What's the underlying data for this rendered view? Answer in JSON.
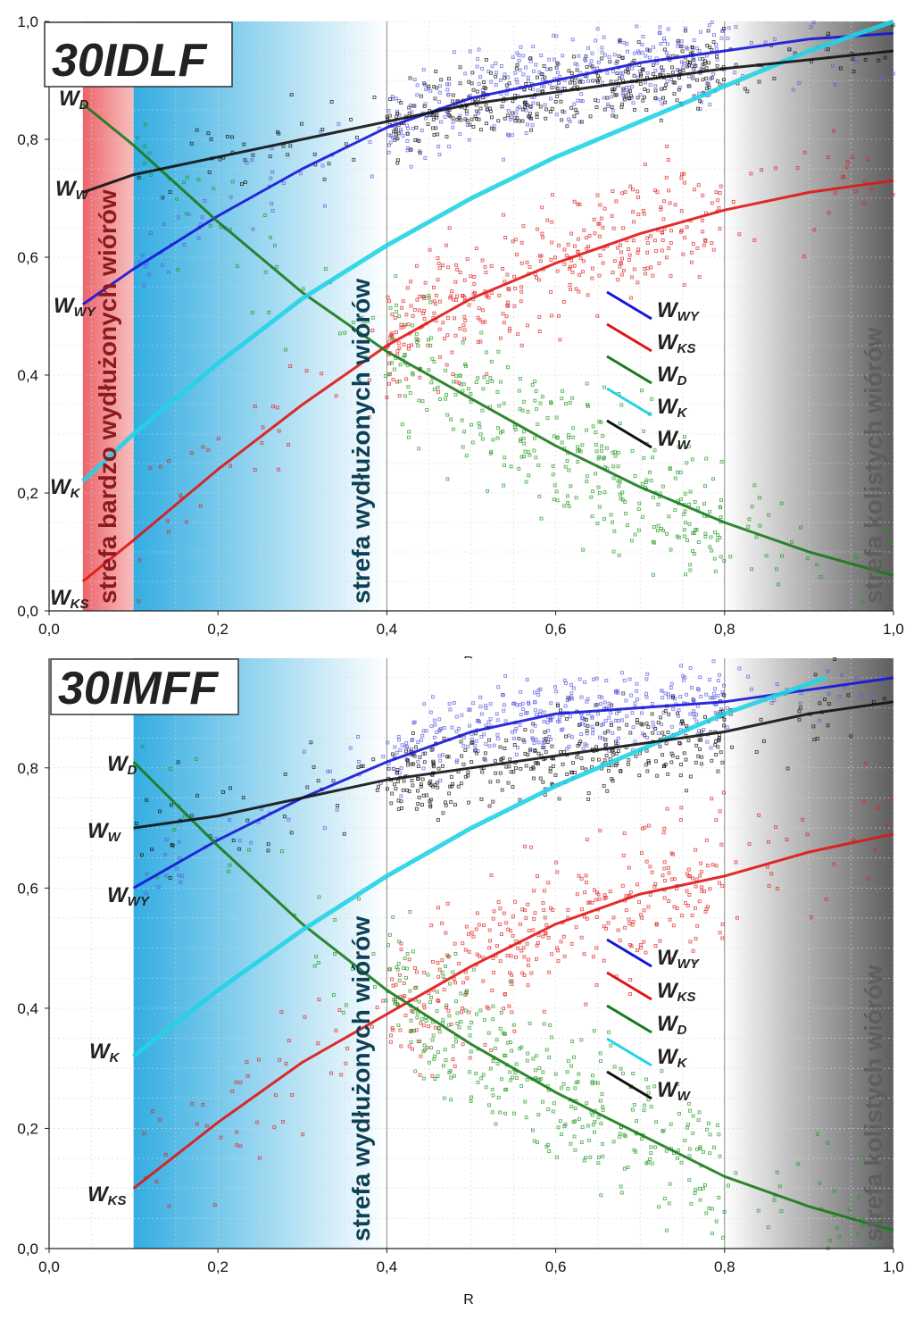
{
  "chart_data": [
    {
      "type": "scatter",
      "title": "30IDLF",
      "xlabel": "R",
      "ylabel": "",
      "xlim": [
        0.0,
        1.0
      ],
      "ylim": [
        0.0,
        1.0
      ],
      "x_ticks": [
        "0,0",
        "0,2",
        "0,4",
        "0,6",
        "0,8",
        "1,0"
      ],
      "y_ticks": [
        "0,0",
        "0,2",
        "0,4",
        "0,6",
        "0,8",
        "1,0"
      ],
      "grid": true,
      "zones": [
        {
          "label": "strefa bardzo wydłużonych wiórów",
          "from": 0.04,
          "to": 0.1,
          "color": "#e8474f",
          "text_color": "#8b1a1e"
        },
        {
          "label": "strefa wydłużonych wiórów",
          "from": 0.1,
          "to": 0.4,
          "color": "#29a9e0",
          "text_color": "#0f3f56"
        },
        {
          "label": "strefa kolistych wiórów",
          "from": 0.8,
          "to": 1.0,
          "color": "#555555",
          "text_color": "#5e5e5e"
        }
      ],
      "series": [
        {
          "name": "W",
          "sub": "WY",
          "color": "#1515d6",
          "marker": "#5a5ae0",
          "x": [
            0.04,
            0.1,
            0.2,
            0.3,
            0.4,
            0.5,
            0.6,
            0.7,
            0.8,
            0.9,
            1.0
          ],
          "y": [
            0.52,
            0.58,
            0.67,
            0.75,
            0.82,
            0.87,
            0.9,
            0.93,
            0.95,
            0.97,
            0.98
          ],
          "scatter_center": [
            0.15,
            0.42,
            0.55,
            0.85,
            0.95
          ],
          "spread": 0.07
        },
        {
          "name": "W",
          "sub": "KS",
          "color": "#e01515",
          "marker": "#e02020",
          "x": [
            0.04,
            0.1,
            0.2,
            0.3,
            0.4,
            0.5,
            0.6,
            0.7,
            0.8,
            0.9,
            1.0
          ],
          "y": [
            0.05,
            0.12,
            0.24,
            0.35,
            0.45,
            0.53,
            0.59,
            0.64,
            0.68,
            0.71,
            0.73
          ],
          "scatter_center": [
            0.35,
            0.45,
            0.55,
            0.62,
            0.75
          ],
          "spread": 0.09
        },
        {
          "name": "W",
          "sub": "D",
          "color": "#1a7a1a",
          "marker": "#1f9a1f",
          "x": [
            0.04,
            0.1,
            0.2,
            0.3,
            0.4,
            0.5,
            0.6,
            0.7,
            0.8,
            0.9,
            1.0
          ],
          "y": [
            0.86,
            0.79,
            0.66,
            0.54,
            0.44,
            0.36,
            0.28,
            0.21,
            0.15,
            0.1,
            0.06
          ],
          "scatter_center": [
            0.2,
            0.4,
            0.6,
            0.8,
            0.95
          ],
          "spread": 0.1
        },
        {
          "name": "W",
          "sub": "K",
          "color": "#22d3e6",
          "marker": "#22d3e6",
          "x": [
            0.04,
            0.1,
            0.2,
            0.3,
            0.4,
            0.5,
            0.6,
            0.7,
            0.8,
            0.9,
            1.0
          ],
          "y": [
            0.22,
            0.3,
            0.42,
            0.53,
            0.62,
            0.7,
            0.77,
            0.83,
            0.89,
            0.95,
            1.0
          ],
          "scatter_center": [],
          "spread": 0.0
        },
        {
          "name": "W",
          "sub": "W",
          "color": "#111111",
          "marker": "#111111",
          "x": [
            0.04,
            0.1,
            0.2,
            0.3,
            0.4,
            0.5,
            0.6,
            0.7,
            0.8,
            0.9,
            1.0
          ],
          "y": [
            0.71,
            0.74,
            0.77,
            0.8,
            0.83,
            0.86,
            0.88,
            0.9,
            0.92,
            0.935,
            0.95
          ],
          "scatter_center": [
            0.3,
            0.42,
            0.55,
            0.8,
            0.95
          ],
          "spread": 0.05
        }
      ],
      "curve_labels": [
        {
          "name": "W",
          "sub": "D"
        },
        {
          "name": "W",
          "sub": "W"
        },
        {
          "name": "W",
          "sub": "WY"
        },
        {
          "name": "W",
          "sub": "K"
        },
        {
          "name": "W",
          "sub": "KS"
        }
      ],
      "legend": [
        {
          "name": "W",
          "sub": "WY",
          "color": "#1515d6"
        },
        {
          "name": "W",
          "sub": "KS",
          "color": "#e01515"
        },
        {
          "name": "W",
          "sub": "D",
          "color": "#1a7a1a"
        },
        {
          "name": "W",
          "sub": "K",
          "color": "#22d3e6"
        },
        {
          "name": "W",
          "sub": "W",
          "color": "#111111"
        }
      ]
    },
    {
      "type": "scatter",
      "title": "30IMFF",
      "xlabel": "R",
      "ylabel": "",
      "xlim": [
        0.0,
        1.0
      ],
      "ylim": [
        0.0,
        1.0
      ],
      "x_ticks": [
        "0,0",
        "0,2",
        "0,4",
        "0,6",
        "0,8",
        "1,0"
      ],
      "y_ticks": [
        "0,0",
        "0,2",
        "0,4",
        "0,6",
        "0,8"
      ],
      "grid": true,
      "zones": [
        {
          "label": "strefa wydłużonych wiórów",
          "from": 0.1,
          "to": 0.4,
          "color": "#29a9e0",
          "text_color": "#0f3f56"
        },
        {
          "label": "strefa kolistych wiórów",
          "from": 0.8,
          "to": 1.0,
          "color": "#555555",
          "text_color": "#5e5e5e"
        }
      ],
      "series": [
        {
          "name": "W",
          "sub": "WY",
          "color": "#1515d6",
          "marker": "#5a5ae0",
          "x": [
            0.1,
            0.2,
            0.3,
            0.4,
            0.5,
            0.6,
            0.7,
            0.8,
            0.9,
            1.0
          ],
          "y": [
            0.6,
            0.68,
            0.75,
            0.81,
            0.86,
            0.89,
            0.9,
            0.91,
            0.93,
            0.95
          ],
          "scatter_center": [
            0.25,
            0.45,
            0.55,
            0.7,
            0.78
          ],
          "spread": 0.05
        },
        {
          "name": "W",
          "sub": "KS",
          "color": "#e01515",
          "marker": "#e02020",
          "x": [
            0.1,
            0.2,
            0.3,
            0.4,
            0.5,
            0.6,
            0.7,
            0.8,
            0.9,
            1.0
          ],
          "y": [
            0.1,
            0.21,
            0.31,
            0.39,
            0.47,
            0.54,
            0.59,
            0.62,
            0.66,
            0.69
          ],
          "scatter_center": [
            0.35,
            0.45,
            0.55,
            0.6,
            0.78
          ],
          "spread": 0.1
        },
        {
          "name": "W",
          "sub": "D",
          "color": "#1a7a1a",
          "marker": "#1f9a1f",
          "x": [
            0.1,
            0.2,
            0.3,
            0.4,
            0.5,
            0.6,
            0.7,
            0.8,
            0.9,
            1.0
          ],
          "y": [
            0.81,
            0.67,
            0.54,
            0.43,
            0.34,
            0.26,
            0.19,
            0.12,
            0.07,
            0.03
          ],
          "scatter_center": [
            0.2,
            0.4,
            0.6,
            0.8,
            0.95
          ],
          "spread": 0.1
        },
        {
          "name": "W",
          "sub": "K",
          "color": "#22d3e6",
          "marker": "#22d3e6",
          "x": [
            0.1,
            0.2,
            0.3,
            0.4,
            0.5,
            0.6,
            0.7,
            0.8,
            0.9,
            0.92
          ],
          "y": [
            0.32,
            0.43,
            0.53,
            0.62,
            0.7,
            0.77,
            0.83,
            0.89,
            0.94,
            0.95
          ],
          "scatter_center": [],
          "spread": 0.0
        },
        {
          "name": "W",
          "sub": "W",
          "color": "#111111",
          "marker": "#111111",
          "x": [
            0.1,
            0.2,
            0.3,
            0.4,
            0.5,
            0.6,
            0.7,
            0.8,
            0.9,
            1.0
          ],
          "y": [
            0.7,
            0.72,
            0.75,
            0.78,
            0.8,
            0.82,
            0.84,
            0.86,
            0.89,
            0.91
          ],
          "scatter_center": [
            0.35,
            0.45,
            0.55,
            0.75,
            0.88
          ],
          "spread": 0.06
        }
      ],
      "curve_labels": [
        {
          "name": "W",
          "sub": "D"
        },
        {
          "name": "W",
          "sub": "W"
        },
        {
          "name": "W",
          "sub": "WY"
        },
        {
          "name": "W",
          "sub": "K"
        },
        {
          "name": "W",
          "sub": "KS"
        }
      ],
      "legend": [
        {
          "name": "W",
          "sub": "WY",
          "color": "#1515d6"
        },
        {
          "name": "W",
          "sub": "KS",
          "color": "#e01515"
        },
        {
          "name": "W",
          "sub": "D",
          "color": "#1a7a1a"
        },
        {
          "name": "W",
          "sub": "K",
          "color": "#22d3e6"
        },
        {
          "name": "W",
          "sub": "W",
          "color": "#111111"
        }
      ]
    }
  ]
}
